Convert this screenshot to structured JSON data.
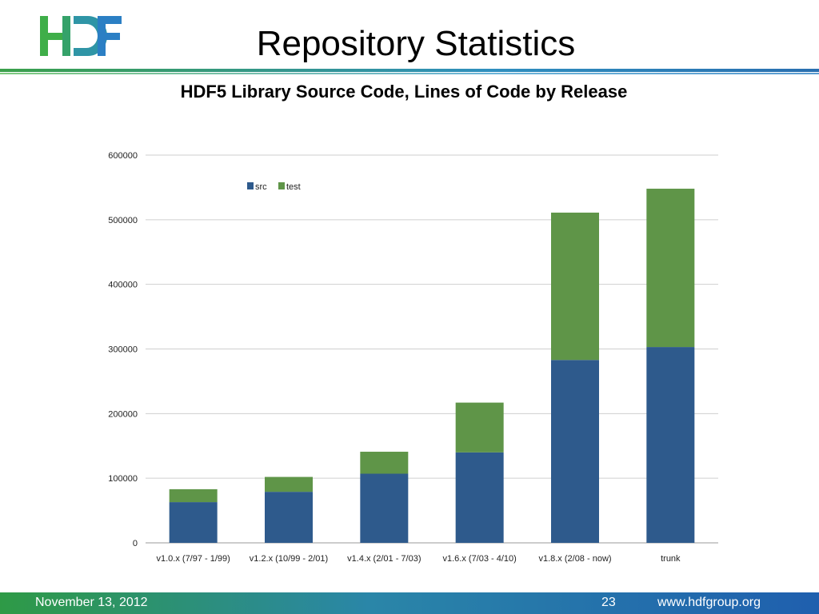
{
  "slide": {
    "title": "Repository Statistics",
    "logo_text": "HDF",
    "footer": {
      "date": "November 13, 2012",
      "page": "23",
      "url": "www.hdfgroup.org"
    }
  },
  "chart_data": {
    "type": "bar",
    "stacked": true,
    "title": "HDF5 Library Source Code, Lines of Code by Release",
    "xlabel": "",
    "ylabel": "",
    "categories": [
      "v1.0.x (7/97 - 1/99)",
      "v1.2.x (10/99 - 2/01)",
      "v1.4.x (2/01 - 7/03)",
      "v1.6.x (7/03 - 4/10)",
      "v1.8.x (2/08 - now)",
      "trunk"
    ],
    "series": [
      {
        "name": "src",
        "color": "#2e5a8c",
        "values": [
          63000,
          79000,
          107000,
          140000,
          283000,
          303000
        ]
      },
      {
        "name": "test",
        "color": "#5f9548",
        "values": [
          20000,
          23000,
          34000,
          77000,
          228000,
          245000
        ]
      }
    ],
    "ylim": [
      0,
      600000
    ],
    "yticks": [
      "0",
      "100000",
      "200000",
      "300000",
      "400000",
      "500000",
      "600000"
    ],
    "grid": true,
    "legend": "top-center"
  }
}
